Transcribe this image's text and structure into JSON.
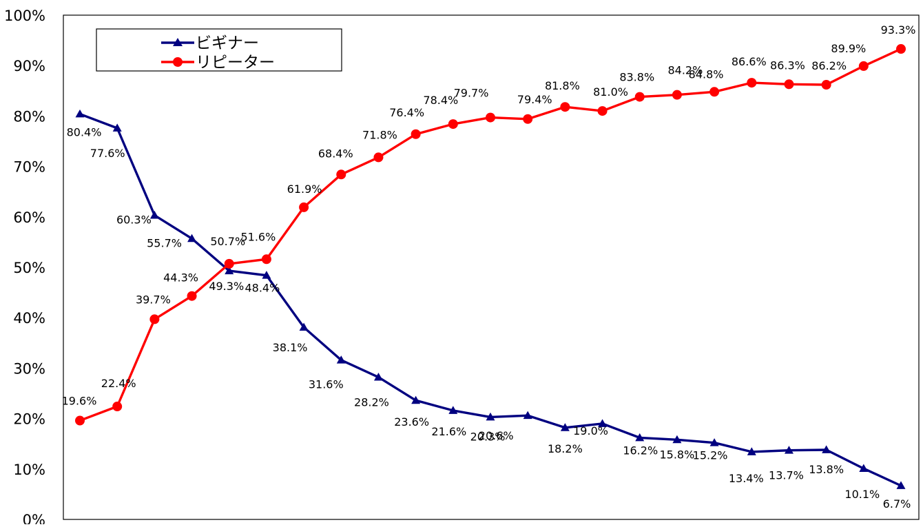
{
  "chart_data": {
    "type": "line",
    "title": "",
    "xlabel": "",
    "ylabel": "",
    "ylim": [
      0,
      100
    ],
    "y_ticks": [
      "0%",
      "10%",
      "20%",
      "30%",
      "40%",
      "50%",
      "60%",
      "70%",
      "80%",
      "90%",
      "100%"
    ],
    "legend": {
      "placement": "top-left",
      "entries": [
        "ビギナー",
        "リピーター"
      ]
    },
    "grid": false,
    "series": [
      {
        "name": "ビギナー",
        "color": "#000080",
        "marker": "triangle",
        "values": [
          80.4,
          77.6,
          60.3,
          55.7,
          49.3,
          48.4,
          38.1,
          31.6,
          28.2,
          23.6,
          21.6,
          20.3,
          20.6,
          18.2,
          19.0,
          16.2,
          15.8,
          15.2,
          13.4,
          13.7,
          13.8,
          10.1,
          6.7
        ],
        "labels": [
          "80.4%",
          "77.6%",
          "60.3%",
          "55.7%",
          "49.3%",
          "48.4%",
          "38.1%",
          "31.6%",
          "28.2%",
          "23.6%",
          "21.6%",
          "20.3%",
          "20.6%",
          "18.2%",
          "19.0%",
          "16.2%",
          "15.8%",
          "15.2%",
          "13.4%",
          "13.7%",
          "13.8%",
          "10.1%",
          "6.7%"
        ]
      },
      {
        "name": "リピーター",
        "color": "#ff0000",
        "marker": "circle",
        "values": [
          19.6,
          22.4,
          39.7,
          44.3,
          50.7,
          51.6,
          61.9,
          68.4,
          71.8,
          76.4,
          78.4,
          79.7,
          79.4,
          81.8,
          81.0,
          83.8,
          84.2,
          84.8,
          86.6,
          86.3,
          86.2,
          89.9,
          93.3
        ],
        "labels": [
          "19.6%",
          "22.4%",
          "39.7%",
          "44.3%",
          "50.7%",
          "51.6%",
          "61.9%",
          "68.4%",
          "71.8%",
          "76.4%",
          "78.4%",
          "79.7%",
          "79.4%",
          "81.8%",
          "81.0%",
          "83.8%",
          "84.2%",
          "84.8%",
          "86.6%",
          "86.3%",
          "86.2%",
          "89.9%",
          "93.3%"
        ]
      }
    ]
  }
}
